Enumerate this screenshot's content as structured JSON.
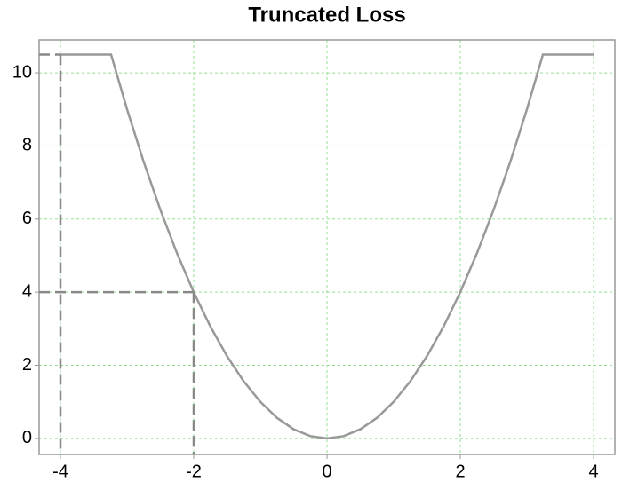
{
  "chart_data": {
    "type": "line",
    "title": "Truncated Loss",
    "x": [
      -4,
      -3.75,
      -3.5,
      -3.24,
      -3,
      -2.75,
      -2.5,
      -2.25,
      -2,
      -1.75,
      -1.5,
      -1.25,
      -1,
      -0.75,
      -0.5,
      -0.25,
      0,
      0.25,
      0.5,
      0.75,
      1,
      1.25,
      1.5,
      1.75,
      2,
      2.25,
      2.5,
      2.75,
      3,
      3.24,
      3.5,
      3.75,
      4
    ],
    "values": [
      10.5,
      10.5,
      10.5,
      10.5,
      9,
      7.5625,
      6.25,
      5.0625,
      4,
      3.0625,
      2.25,
      1.5625,
      1,
      0.5625,
      0.25,
      0.0625,
      0,
      0.0625,
      0.25,
      0.5625,
      1,
      1.5625,
      2.25,
      3.0625,
      4,
      5.0625,
      6.25,
      7.5625,
      9,
      10.5,
      10.5,
      10.5,
      10.5
    ],
    "color": "#999999",
    "markers": [
      {
        "x": -4,
        "y": 10.5
      },
      {
        "x": -2,
        "y": 4
      }
    ],
    "marker_color": "#888888",
    "xlim": [
      -4.32,
      4.32
    ],
    "ylim": [
      -0.44,
      10.9
    ],
    "xticks": [
      -4,
      -2,
      0,
      2,
      4
    ],
    "yticks": [
      0,
      2,
      4,
      6,
      8,
      10
    ],
    "grid": true,
    "grid_color": "#90e090"
  }
}
